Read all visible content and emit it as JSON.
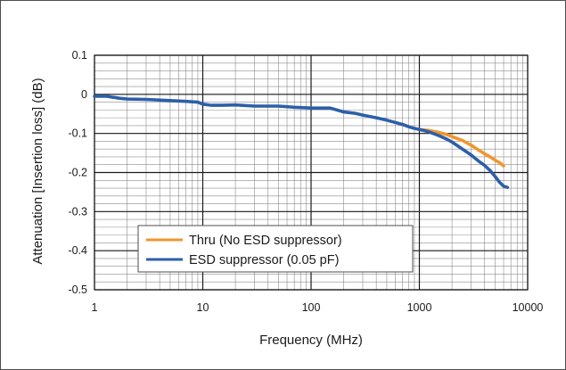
{
  "chart_data": {
    "type": "line",
    "title": "",
    "xlabel": "Frequency (MHz)",
    "ylabel": "Attenuation [Insertion loss] (dB)",
    "xscale": "log",
    "xlim": [
      1,
      10000
    ],
    "ylim": [
      -0.5,
      0.1
    ],
    "grid": true,
    "legend_position": "bottom-left",
    "x_tick_labels": [
      "1",
      "10",
      "100",
      "1000",
      "10000"
    ],
    "y_tick_labels": [
      "0.1",
      "0",
      "-0.1",
      "-0.2",
      "-0.3",
      "-0.4",
      "-0.5"
    ],
    "x_ticks": [
      1,
      10,
      100,
      1000,
      10000
    ],
    "y_ticks": [
      0.1,
      0,
      -0.1,
      -0.2,
      -0.3,
      -0.4,
      -0.5
    ],
    "series": [
      {
        "name": "Thru (No ESD suppressor)",
        "color": "#f0962e",
        "x": [
          1000,
          1200,
          1500,
          1800,
          2000,
          2500,
          3000,
          3500,
          4000,
          4500,
          5000,
          5500,
          6000
        ],
        "y": [
          -0.09,
          -0.092,
          -0.097,
          -0.103,
          -0.108,
          -0.118,
          -0.13,
          -0.142,
          -0.152,
          -0.16,
          -0.168,
          -0.175,
          -0.183
        ]
      },
      {
        "name": "ESD suppressor (0.05 pF)",
        "color": "#2d5fa8",
        "x": [
          1,
          1.3,
          1.7,
          2,
          3,
          5,
          7,
          9,
          10,
          12,
          15,
          20,
          30,
          50,
          70,
          100,
          130,
          150,
          200,
          250,
          300,
          400,
          500,
          600,
          700,
          800,
          900,
          1000,
          1200,
          1500,
          1800,
          2000,
          2500,
          3000,
          3500,
          4000,
          4500,
          5000,
          5500,
          6000,
          6500
        ],
        "y": [
          -0.005,
          -0.005,
          -0.01,
          -0.012,
          -0.013,
          -0.016,
          -0.018,
          -0.02,
          -0.025,
          -0.028,
          -0.028,
          -0.027,
          -0.03,
          -0.03,
          -0.033,
          -0.035,
          -0.035,
          -0.035,
          -0.045,
          -0.048,
          -0.053,
          -0.06,
          -0.066,
          -0.072,
          -0.077,
          -0.083,
          -0.087,
          -0.09,
          -0.095,
          -0.105,
          -0.115,
          -0.122,
          -0.14,
          -0.155,
          -0.17,
          -0.182,
          -0.195,
          -0.21,
          -0.225,
          -0.235,
          -0.238
        ]
      }
    ]
  }
}
